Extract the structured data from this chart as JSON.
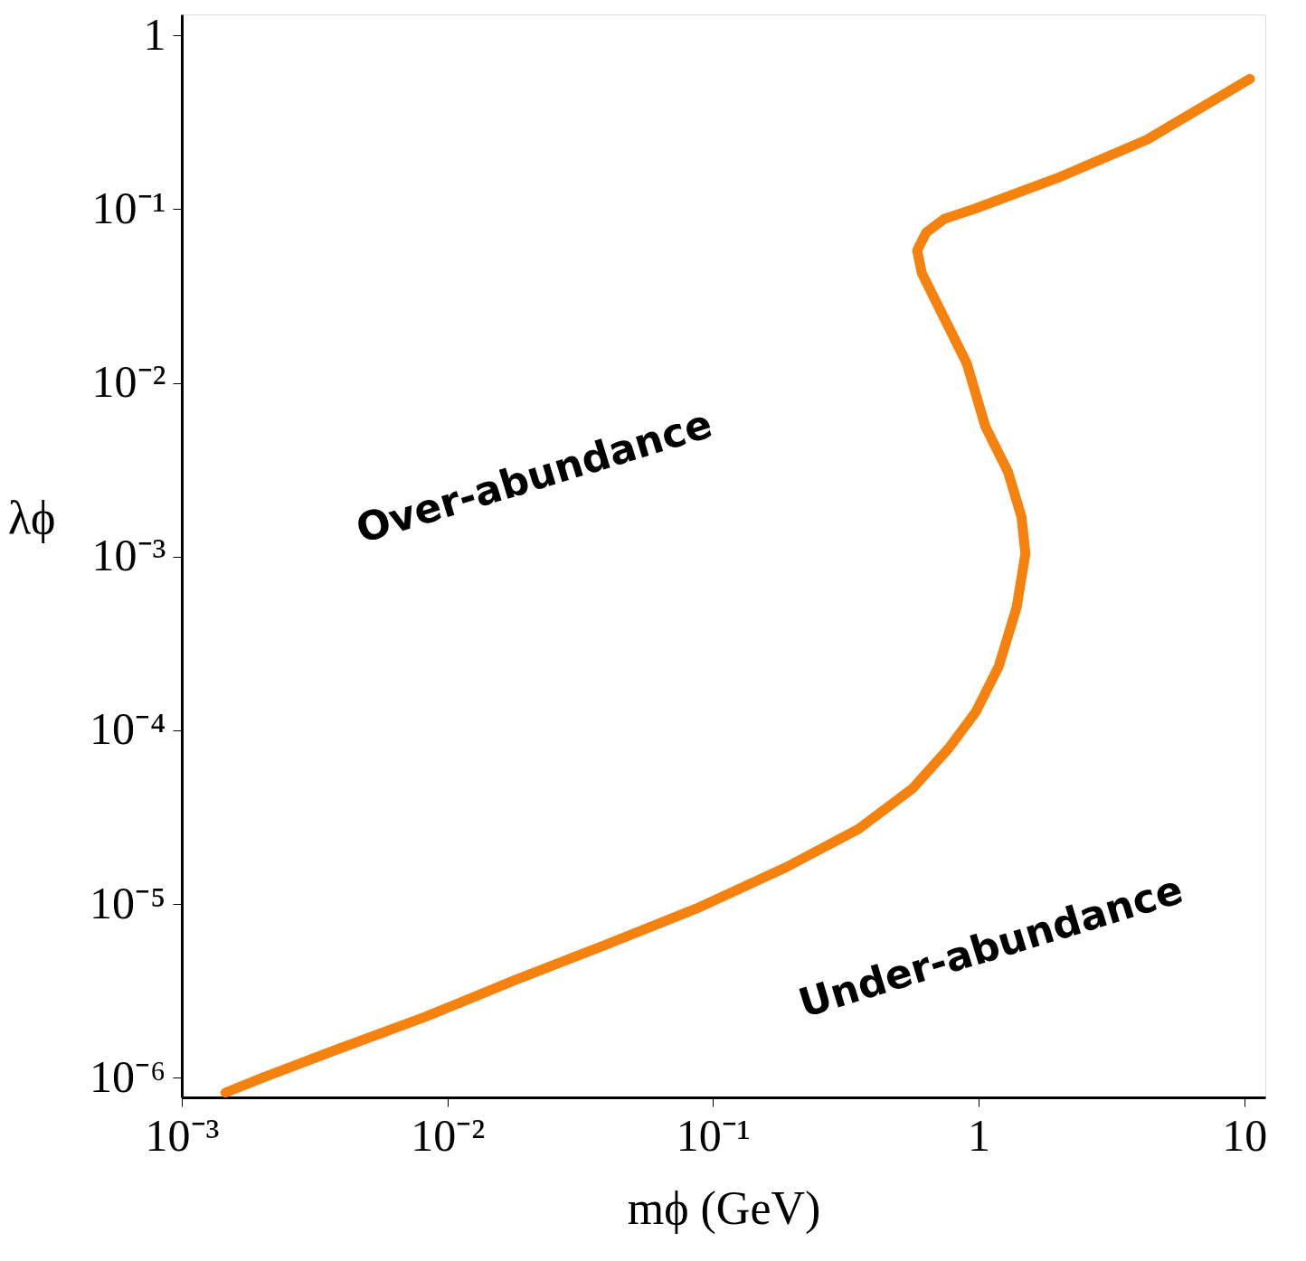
{
  "chart_data": {
    "type": "line",
    "xlabel": "mϕ (GeV)",
    "ylabel": "λϕ",
    "log": "xy",
    "xlim": [
      0.001,
      12
    ],
    "ylim": [
      7.7e-07,
      1.32
    ],
    "xticks": [
      {
        "value": 0.001,
        "label": "10⁻³"
      },
      {
        "value": 0.01,
        "label": "10⁻²"
      },
      {
        "value": 0.1,
        "label": "10⁻¹"
      },
      1,
      10
    ],
    "yticks": [
      {
        "value": 1e-06,
        "label": "10⁻⁶"
      },
      {
        "value": 1e-05,
        "label": "10⁻⁵"
      },
      {
        "value": 0.0001,
        "label": "10⁻⁴"
      },
      {
        "value": 0.001,
        "label": "10⁻³"
      },
      {
        "value": 0.01,
        "label": "10⁻²"
      },
      {
        "value": 0.1,
        "label": "10⁻¹"
      },
      1
    ],
    "grid": false,
    "series": [
      {
        "color": "#f5820f",
        "x": [
          0.00146,
          0.00202,
          0.00378,
          0.00826,
          0.0181,
          0.0395,
          0.0865,
          0.189,
          0.353,
          0.565,
          0.773,
          0.977,
          1.19,
          1.39,
          1.5,
          1.45,
          1.29,
          1.06,
          0.903,
          0.743,
          0.611,
          0.587,
          0.635,
          0.743,
          0.977,
          1.98,
          4.32,
          10.5
        ],
        "values": [
          8.2e-07,
          1e-06,
          1.44e-06,
          2.24e-06,
          3.66e-06,
          5.83e-06,
          9.4e-06,
          1.63e-05,
          2.7e-05,
          4.63e-05,
          7.9e-05,
          0.000128,
          0.000233,
          0.00051,
          0.00104,
          0.00169,
          0.00307,
          0.0056,
          0.0129,
          0.0235,
          0.0428,
          0.0578,
          0.0734,
          0.0879,
          0.101,
          0.151,
          0.252,
          0.562
        ]
      }
    ],
    "annotations": [
      "Over-abundance",
      "Under-abundance"
    ]
  }
}
